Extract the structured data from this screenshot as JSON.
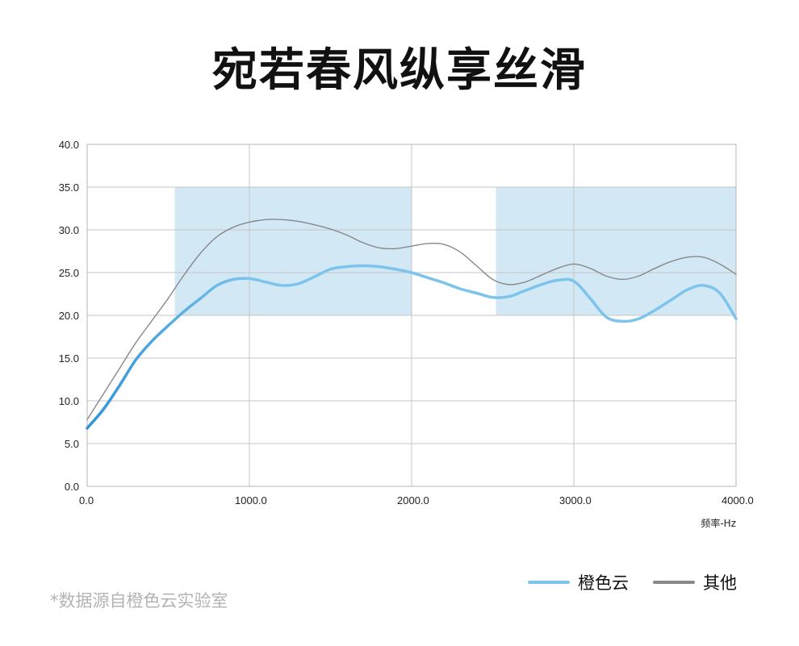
{
  "title": "宛若春风纵享丝滑",
  "footnote": "*数据源自橙色云实验室",
  "legend": [
    {
      "label": "橙色云",
      "color": "#7cc4ec"
    },
    {
      "label": "其他",
      "color": "#888888"
    }
  ],
  "chart_data": {
    "type": "line",
    "title": "宛若春风纵享丝滑",
    "xlabel": "频率-Hz",
    "ylabel": "",
    "xlim": [
      0,
      4000
    ],
    "ylim": [
      0,
      40
    ],
    "x_ticks": [
      "0.0",
      "1000.0",
      "2000.0",
      "3000.0",
      "4000.0"
    ],
    "y_ticks": [
      "0.0",
      "5.0",
      "10.0",
      "15.0",
      "20.0",
      "25.0",
      "30.0",
      "35.0",
      "40.0"
    ],
    "grid": true,
    "legend_position": "bottom-right",
    "shaded_regions": [
      {
        "x": [
          540,
          2000
        ],
        "y": [
          20,
          35
        ],
        "color": "#d3e8f5"
      },
      {
        "x": [
          2520,
          4000
        ],
        "y": [
          20,
          35
        ],
        "color": "#d3e8f5"
      }
    ],
    "series": [
      {
        "name": "橙色云",
        "color": "#7cc4ec",
        "x": [
          0,
          100,
          200,
          300,
          400,
          500,
          600,
          700,
          800,
          900,
          1000,
          1100,
          1200,
          1300,
          1400,
          1500,
          1600,
          1700,
          1800,
          1900,
          2000,
          2100,
          2200,
          2300,
          2400,
          2500,
          2600,
          2700,
          2800,
          2900,
          3000,
          3100,
          3200,
          3300,
          3400,
          3500,
          3600,
          3700,
          3800,
          3900,
          4000
        ],
        "y": [
          6.8,
          9.0,
          11.8,
          14.8,
          17.0,
          18.8,
          20.5,
          22.0,
          23.5,
          24.2,
          24.3,
          23.9,
          23.5,
          23.7,
          24.5,
          25.4,
          25.7,
          25.8,
          25.7,
          25.4,
          25.0,
          24.4,
          23.8,
          23.1,
          22.6,
          22.1,
          22.2,
          22.9,
          23.6,
          24.1,
          24.0,
          22.0,
          19.8,
          19.3,
          19.6,
          20.6,
          21.8,
          23.0,
          23.5,
          22.6,
          19.6
        ]
      },
      {
        "name": "其他",
        "color": "#888888",
        "x": [
          0,
          100,
          200,
          300,
          400,
          500,
          600,
          700,
          800,
          900,
          1000,
          1100,
          1200,
          1300,
          1400,
          1500,
          1600,
          1700,
          1800,
          1900,
          2000,
          2100,
          2200,
          2300,
          2400,
          2500,
          2600,
          2700,
          2800,
          2900,
          3000,
          3100,
          3200,
          3300,
          3400,
          3500,
          3600,
          3700,
          3800,
          3900,
          4000
        ],
        "y": [
          7.8,
          10.8,
          13.8,
          16.8,
          19.4,
          22.0,
          24.8,
          27.3,
          29.2,
          30.3,
          30.9,
          31.2,
          31.2,
          31.0,
          30.6,
          30.1,
          29.4,
          28.5,
          27.9,
          27.8,
          28.1,
          28.4,
          28.3,
          27.4,
          25.8,
          24.2,
          23.6,
          23.9,
          24.7,
          25.5,
          26.0,
          25.5,
          24.6,
          24.2,
          24.6,
          25.5,
          26.3,
          26.8,
          26.8,
          26.0,
          24.8
        ]
      }
    ]
  }
}
